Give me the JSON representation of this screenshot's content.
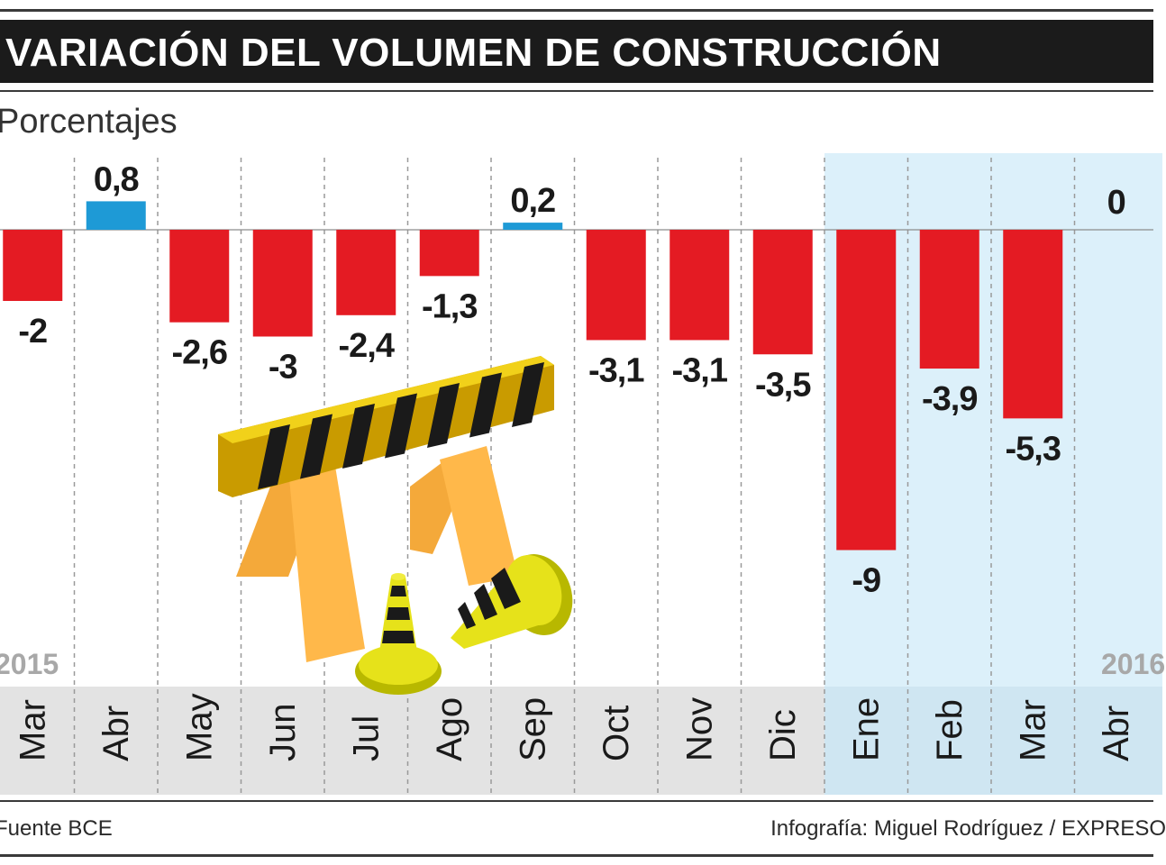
{
  "header": {
    "title": "VARIACIÓN DEL VOLUMEN DE CONSTRUCCIÓN",
    "subtitle": "Porcentajes"
  },
  "chart_data": {
    "type": "bar",
    "title": "VARIACIÓN DEL VOLUMEN DE CONSTRUCCIÓN",
    "ylabel": "Porcentajes",
    "xlabel": "",
    "categories": [
      "Mar",
      "Abr",
      "May",
      "Jun",
      "Jul",
      "Ago",
      "Sep",
      "Oct",
      "Nov",
      "Dic",
      "Ene",
      "Feb",
      "Mar",
      "Abr"
    ],
    "values": [
      -2,
      0.8,
      -2.6,
      -3,
      -2.4,
      -1.3,
      0.2,
      -3.1,
      -3.1,
      -3.5,
      -9,
      -3.9,
      -5.3,
      0
    ],
    "value_labels": [
      "-2",
      "0,8",
      "-2,6",
      "-3",
      "-2,4",
      "-1,3",
      "0,2",
      "-3,1",
      "-3,1",
      "-3,5",
      "-9",
      "-3,9",
      "-5,3",
      "0"
    ],
    "year_labels": [
      "2015",
      "2016"
    ],
    "ylim": [
      -9.6,
      2.2
    ],
    "grid": true
  },
  "footer": {
    "source": "Fuente BCE",
    "credit": "Infografía: Miguel Rodríguez / EXPRESO"
  },
  "colors": {
    "positive_bar": "#1e9ad6",
    "negative_bar": "#e41b23",
    "highlight_band": "#dcf0fa",
    "label_strip": "#e3e3e3",
    "title_bar": "#1b1b1b"
  }
}
